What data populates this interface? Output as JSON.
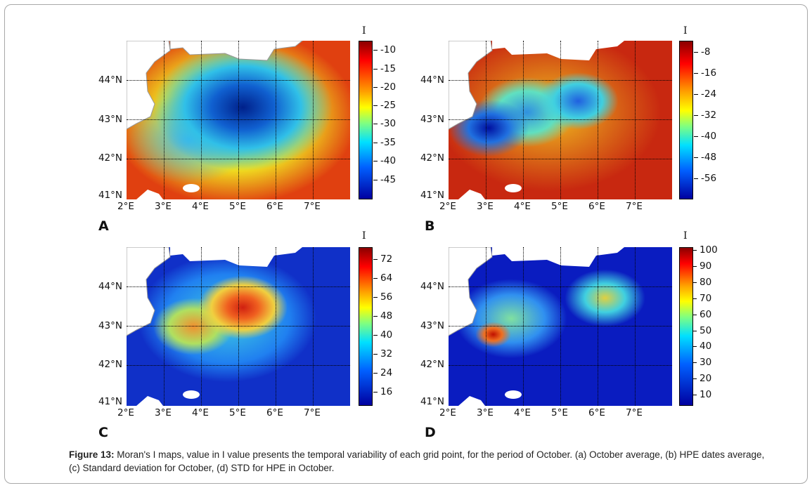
{
  "panels": [
    {
      "id": "A",
      "letter": "A",
      "colorbar_title": "I",
      "colorbar_ticks": [
        "-10",
        "-15",
        "-20",
        "-25",
        "-30",
        "-35",
        "-40",
        "-45"
      ],
      "colormap": "jet",
      "lat_labels": [
        "44°N",
        "43°N",
        "42°N",
        "41°N"
      ],
      "lon_labels": [
        "2°E",
        "3°E",
        "4°E",
        "5°E",
        "6°E",
        "7°E"
      ]
    },
    {
      "id": "B",
      "letter": "B",
      "colorbar_title": "I",
      "colorbar_ticks": [
        "-8",
        "-16",
        "-24",
        "-32",
        "-40",
        "-48",
        "-56"
      ],
      "colormap": "jet",
      "lat_labels": [
        "44°N",
        "43°N",
        "42°N",
        "41°N"
      ],
      "lon_labels": [
        "2°E",
        "3°E",
        "4°E",
        "5°E",
        "6°E",
        "7°E"
      ]
    },
    {
      "id": "C",
      "letter": "C",
      "colorbar_title": "I",
      "colorbar_ticks": [
        "72",
        "64",
        "56",
        "48",
        "40",
        "32",
        "24",
        "16"
      ],
      "colormap": "jet",
      "lat_labels": [
        "44°N",
        "43°N",
        "42°N",
        "41°N"
      ],
      "lon_labels": [
        "2°E",
        "3°E",
        "4°E",
        "5°E",
        "6°E",
        "7°E"
      ]
    },
    {
      "id": "D",
      "letter": "D",
      "colorbar_title": "I",
      "colorbar_ticks": [
        "100",
        "90",
        "80",
        "70",
        "60",
        "50",
        "40",
        "30",
        "20",
        "10"
      ],
      "colormap": "jet",
      "lat_labels": [
        "44°N",
        "43°N",
        "42°N",
        "41°N"
      ],
      "lon_labels": [
        "2°E",
        "3°E",
        "4°E",
        "5°E",
        "6°E",
        "7°E"
      ]
    }
  ],
  "caption": {
    "label": "Figure 13:",
    "text": " Moran's I maps, value in I value presents the temporal variability of each grid point, for the period of October. (a) October average, (b) HPE dates average, (c) Standard deviation for October, (d) STD for HPE in October."
  },
  "colors": {
    "land": "#ffffff",
    "coast_outline": "#999999",
    "grid": "#000000"
  }
}
